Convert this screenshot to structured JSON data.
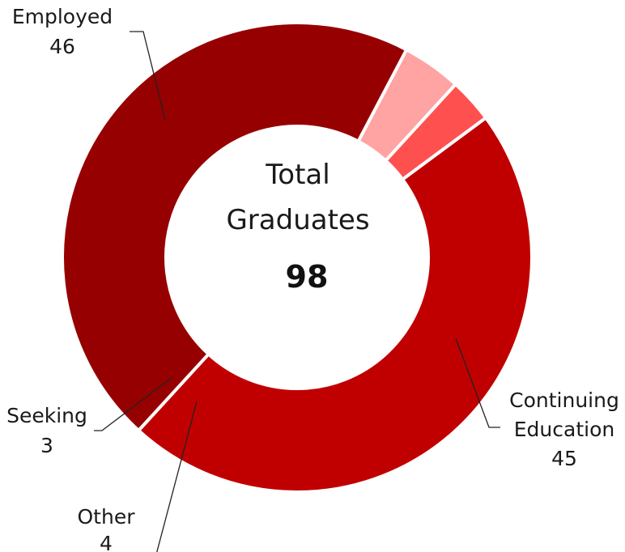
{
  "chart_data": {
    "type": "pie",
    "variant": "donut",
    "center_label": [
      "Total",
      "Graduates"
    ],
    "center_value": "98",
    "slices": [
      {
        "label": [
          "Employed"
        ],
        "value": 46,
        "color": "#c00000"
      },
      {
        "label": [
          "Continuing",
          "Education"
        ],
        "value": 45,
        "color": "#960000"
      },
      {
        "label": [
          "Other"
        ],
        "value": 4,
        "color": "#ffa3a3"
      },
      {
        "label": [
          "Seeking"
        ],
        "value": 3,
        "color": "#ff5050"
      }
    ],
    "legend": "none",
    "data_labels": "outside-with-leader-lines"
  }
}
